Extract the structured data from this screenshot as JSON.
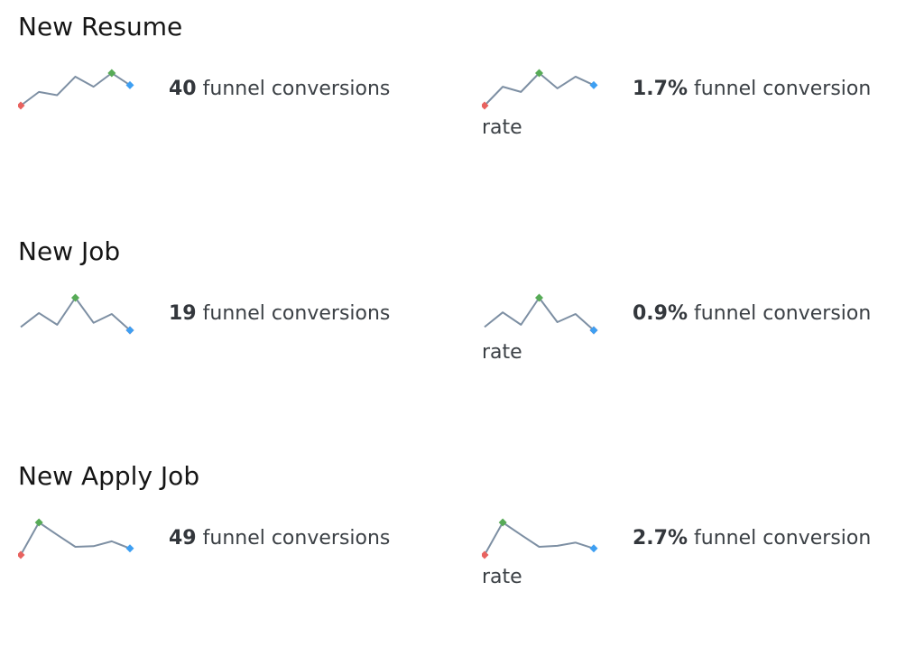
{
  "colors": {
    "background": "#ffffff",
    "title_text": "#161616",
    "metric_text": "#3b4045",
    "sparkline_line": "#7d8fa3",
    "marker_min": "#e8625f",
    "marker_max": "#57ab57",
    "marker_last": "#3e9ff2"
  },
  "marker_semantics": {
    "red": "minimum point",
    "green": "maximum point",
    "blue": "latest point"
  },
  "sections": [
    {
      "title": "New Resume",
      "metrics": [
        {
          "value": "40",
          "label": "funnel conversions"
        },
        {
          "value": "1.7%",
          "label": "funnel conversion rate"
        }
      ]
    },
    {
      "title": "New Job",
      "metrics": [
        {
          "value": "19",
          "label": "funnel conversions"
        },
        {
          "value": "0.9%",
          "label": "funnel conversion rate"
        }
      ]
    },
    {
      "title": "New Apply Job",
      "metrics": [
        {
          "value": "49",
          "label": "funnel conversions"
        },
        {
          "value": "2.7%",
          "label": "funnel conversion rate"
        }
      ]
    }
  ],
  "chart_data": [
    {
      "type": "line",
      "section": "New Resume",
      "metric": "funnel conversions",
      "headline_value": 40,
      "x": [
        1,
        2,
        3,
        4,
        5,
        6,
        7
      ],
      "y_normalized": [
        0,
        0.42,
        0.32,
        0.89,
        0.58,
        1.0,
        0.63
      ],
      "markers": {
        "min": "red",
        "max": "green",
        "last": "blue"
      },
      "grid": false,
      "axes_shown": false
    },
    {
      "type": "line",
      "section": "New Resume",
      "metric": "funnel conversion rate",
      "headline_value": "1.7%",
      "x": [
        1,
        2,
        3,
        4,
        5,
        6,
        7
      ],
      "y_normalized": [
        0,
        0.58,
        0.42,
        1.0,
        0.53,
        0.89,
        0.63
      ],
      "markers": {
        "min": "red",
        "max": "green",
        "last": "blue"
      },
      "grid": false,
      "axes_shown": false
    },
    {
      "type": "line",
      "section": "New Job",
      "metric": "funnel conversions",
      "headline_value": 19,
      "x": [
        1,
        2,
        3,
        4,
        5,
        6,
        7
      ],
      "y_normalized": [
        0.1,
        0.53,
        0.17,
        1.0,
        0.23,
        0.5,
        0.0
      ],
      "markers": {
        "min": "red",
        "max": "green",
        "last": "blue"
      },
      "grid": false,
      "axes_shown": false
    },
    {
      "type": "line",
      "section": "New Job",
      "metric": "funnel conversion rate",
      "headline_value": "0.9%",
      "x": [
        1,
        2,
        3,
        4,
        5,
        6,
        7
      ],
      "y_normalized": [
        0.1,
        0.55,
        0.17,
        1.0,
        0.25,
        0.5,
        0.0
      ],
      "markers": {
        "min": "red",
        "max": "green",
        "last": "blue"
      },
      "grid": false,
      "axes_shown": false
    },
    {
      "type": "line",
      "section": "New Apply Job",
      "metric": "funnel conversions",
      "headline_value": 49,
      "x": [
        1,
        2,
        3,
        4,
        5,
        6,
        7
      ],
      "y_normalized": [
        0,
        1.0,
        0.62,
        0.25,
        0.27,
        0.42,
        0.2
      ],
      "markers": {
        "min": "red",
        "max": "green",
        "last": "blue"
      },
      "grid": false,
      "axes_shown": false
    },
    {
      "type": "line",
      "section": "New Apply Job",
      "metric": "funnel conversion rate",
      "headline_value": "2.7%",
      "x": [
        1,
        2,
        3,
        4,
        5,
        6,
        7
      ],
      "y_normalized": [
        0,
        1.0,
        0.62,
        0.25,
        0.28,
        0.38,
        0.2
      ],
      "markers": {
        "min": "red",
        "max": "green",
        "last": "blue"
      },
      "grid": false,
      "axes_shown": false
    }
  ]
}
